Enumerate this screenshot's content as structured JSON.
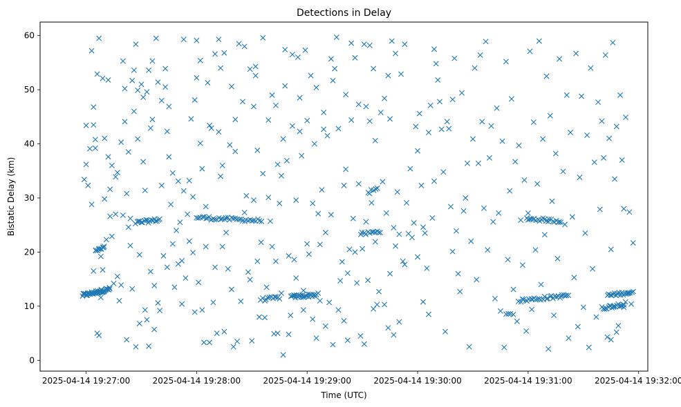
{
  "chart_data": {
    "type": "scatter",
    "title": "Detections in Delay",
    "xlabel": "Time (UTC)",
    "ylabel": "Bistatic Delay (km)",
    "marker": "x",
    "color": "#1f77b4",
    "xlim_seconds": [
      -25,
      305
    ],
    "ylim": [
      -2,
      62.5
    ],
    "x_origin": "2025-04-14 19:27:00",
    "xticks": [
      {
        "t": 0,
        "label": "2025-04-14 19:27:00"
      },
      {
        "t": 60,
        "label": "2025-04-14 19:28:00"
      },
      {
        "t": 120,
        "label": "2025-04-14 19:29:00"
      },
      {
        "t": 180,
        "label": "2025-04-14 19:30:00"
      },
      {
        "t": 240,
        "label": "2025-04-14 19:31:00"
      },
      {
        "t": 300,
        "label": "2025-04-14 19:32:00"
      }
    ],
    "yticks": [
      0,
      10,
      20,
      30,
      40,
      50,
      60
    ],
    "grid": false,
    "clusters": [
      {
        "t0": -2,
        "t1": 13,
        "y0": 12.0,
        "y1": 13.2,
        "n": 42
      },
      {
        "t0": 5,
        "t1": 10,
        "y0": 20.2,
        "y1": 20.8,
        "n": 10
      },
      {
        "t0": 27,
        "t1": 40,
        "y0": 25.4,
        "y1": 26.0,
        "n": 18
      },
      {
        "t0": 60,
        "t1": 95,
        "y0": 26.4,
        "y1": 25.8,
        "n": 36
      },
      {
        "t0": 95,
        "t1": 105,
        "y0": 11.2,
        "y1": 11.6,
        "n": 12
      },
      {
        "t0": 111,
        "t1": 125,
        "y0": 11.7,
        "y1": 12.1,
        "n": 26
      },
      {
        "t0": 149,
        "t1": 160,
        "y0": 23.3,
        "y1": 23.8,
        "n": 12
      },
      {
        "t0": 153,
        "t1": 158,
        "y0": 31.0,
        "y1": 31.6,
        "n": 6
      },
      {
        "t0": 239,
        "t1": 258,
        "y0": 26.2,
        "y1": 25.7,
        "n": 22
      },
      {
        "t0": 235,
        "t1": 262,
        "y0": 11.0,
        "y1": 12.0,
        "n": 30
      },
      {
        "t0": 283,
        "t1": 297,
        "y0": 12.0,
        "y1": 12.6,
        "n": 20
      },
      {
        "t0": 280,
        "t1": 293,
        "y0": 9.6,
        "y1": 10.5,
        "n": 20
      },
      {
        "t0": 228,
        "t1": 232,
        "y0": 8.3,
        "y1": 8.5,
        "n": 4
      }
    ],
    "points": [
      [
        -1,
        33.4
      ],
      [
        0,
        43.4
      ],
      [
        0,
        36.2
      ],
      [
        1,
        32.3
      ],
      [
        2,
        39.1
      ],
      [
        3,
        57.2
      ],
      [
        3,
        28.8
      ],
      [
        4,
        16.5
      ],
      [
        4,
        43.5
      ],
      [
        4,
        46.8
      ],
      [
        5,
        39.2
      ],
      [
        5,
        40.8
      ],
      [
        6,
        52.9
      ],
      [
        6,
        5.0
      ],
      [
        7,
        59.5
      ],
      [
        7,
        4.6
      ],
      [
        8,
        11.6
      ],
      [
        8,
        19.2
      ],
      [
        9,
        16.7
      ],
      [
        9,
        52.1
      ],
      [
        10,
        41.0
      ],
      [
        10,
        29.8
      ],
      [
        11,
        22.3
      ],
      [
        12,
        51.8
      ],
      [
        12,
        37.6
      ],
      [
        13,
        31.6
      ],
      [
        13,
        26.6
      ],
      [
        14,
        22.9
      ],
      [
        14,
        36.0
      ],
      [
        15,
        14.2
      ],
      [
        16,
        33.9
      ],
      [
        16,
        27.0
      ],
      [
        17,
        15.5
      ],
      [
        17,
        34.7
      ],
      [
        18,
        11.0
      ],
      [
        19,
        40.3
      ],
      [
        19,
        13.9
      ],
      [
        20,
        55.3
      ],
      [
        20,
        26.8
      ],
      [
        21,
        50.2
      ],
      [
        21,
        44.1
      ],
      [
        22,
        30.8
      ],
      [
        22,
        3.8
      ],
      [
        23,
        38.5
      ],
      [
        23,
        24.6
      ],
      [
        24,
        21.2
      ],
      [
        24,
        26.2
      ],
      [
        25,
        51.7
      ],
      [
        25,
        13.2
      ],
      [
        26,
        46.0
      ],
      [
        26,
        53.6
      ],
      [
        27,
        58.4
      ],
      [
        27,
        2.5
      ],
      [
        28,
        40.9
      ],
      [
        28,
        49.9
      ],
      [
        29,
        19.5
      ],
      [
        29,
        6.8
      ],
      [
        30,
        51.0
      ],
      [
        31,
        48.6
      ],
      [
        31,
        36.7
      ],
      [
        32,
        9.3
      ],
      [
        32,
        31.4
      ],
      [
        33,
        49.6
      ],
      [
        33,
        7.5
      ],
      [
        34,
        53.6
      ],
      [
        34,
        2.6
      ],
      [
        35,
        16.4
      ],
      [
        35,
        42.9
      ],
      [
        36,
        55.3
      ],
      [
        36,
        44.5
      ],
      [
        37,
        13.8
      ],
      [
        37,
        5.7
      ],
      [
        38,
        59.5
      ],
      [
        39,
        51.4
      ],
      [
        39,
        10.6
      ],
      [
        40,
        9.2
      ],
      [
        41,
        32.3
      ],
      [
        41,
        48.0
      ],
      [
        42,
        19.3
      ],
      [
        43,
        53.9
      ],
      [
        43,
        50.5
      ],
      [
        44,
        42.3
      ],
      [
        44,
        17.2
      ],
      [
        45,
        37.6
      ],
      [
        45,
        46.9
      ],
      [
        46,
        28.8
      ],
      [
        47,
        34.6
      ],
      [
        47,
        21.5
      ],
      [
        48,
        13.5
      ],
      [
        49,
        24.0
      ],
      [
        50,
        17.8
      ],
      [
        50,
        33.1
      ],
      [
        51,
        25.5
      ],
      [
        52,
        10.4
      ],
      [
        52,
        18.4
      ],
      [
        53,
        59.3
      ],
      [
        53,
        31.3
      ],
      [
        54,
        15.2
      ],
      [
        55,
        27.0
      ],
      [
        56,
        33.2
      ],
      [
        56,
        22.0
      ],
      [
        57,
        44.6
      ],
      [
        58,
        30.2
      ],
      [
        58,
        19.9
      ],
      [
        59,
        48.1
      ],
      [
        59,
        8.9
      ],
      [
        60,
        59.1
      ],
      [
        60,
        52.2
      ],
      [
        61,
        14.4
      ],
      [
        62,
        55.4
      ],
      [
        62,
        40.1
      ],
      [
        63,
        35.4
      ],
      [
        63,
        9.3
      ],
      [
        64,
        3.3
      ],
      [
        65,
        21.0
      ],
      [
        65,
        28.4
      ],
      [
        66,
        51.3
      ],
      [
        67,
        3.3
      ],
      [
        67,
        43.4
      ],
      [
        68,
        42.9
      ],
      [
        69,
        10.7
      ],
      [
        70,
        56.6
      ],
      [
        70,
        17.2
      ],
      [
        71,
        5.0
      ],
      [
        72,
        59.3
      ],
      [
        72,
        42.2
      ],
      [
        73,
        34.0
      ],
      [
        73,
        54.0
      ],
      [
        74,
        36.0
      ],
      [
        74,
        21.0
      ],
      [
        75,
        56.8
      ],
      [
        75,
        5.3
      ],
      [
        76,
        23.6
      ],
      [
        77,
        16.9
      ],
      [
        78,
        39.8
      ],
      [
        79,
        50.6
      ],
      [
        79,
        13.1
      ],
      [
        80,
        2.5
      ],
      [
        81,
        44.5
      ],
      [
        81,
        38.6
      ],
      [
        82,
        3.5
      ],
      [
        83,
        58.5
      ],
      [
        84,
        10.9
      ],
      [
        85,
        47.8
      ],
      [
        86,
        27.3
      ],
      [
        86,
        58.0
      ],
      [
        87,
        30.4
      ],
      [
        88,
        16.3
      ],
      [
        89,
        53.8
      ],
      [
        89,
        14.9
      ],
      [
        90,
        3.6
      ],
      [
        91,
        29.6
      ],
      [
        91,
        46.9
      ],
      [
        92,
        54.3
      ],
      [
        92,
        52.6
      ],
      [
        93,
        38.8
      ],
      [
        93,
        18.3
      ],
      [
        94,
        8.0
      ],
      [
        95,
        21.8
      ],
      [
        96,
        59.6
      ],
      [
        96,
        34.5
      ],
      [
        97,
        7.9
      ],
      [
        98,
        13.5
      ],
      [
        99,
        44.4
      ],
      [
        99,
        30.1
      ],
      [
        100,
        25.7
      ],
      [
        101,
        49.0
      ],
      [
        101,
        21.0
      ],
      [
        102,
        4.9
      ],
      [
        103,
        47.1
      ],
      [
        103,
        18.3
      ],
      [
        104,
        36.2
      ],
      [
        104,
        5.0
      ],
      [
        105,
        29.0
      ],
      [
        106,
        12.4
      ],
      [
        106,
        34.1
      ],
      [
        107,
        40.9
      ],
      [
        107,
        1.0
      ],
      [
        108,
        50.7
      ],
      [
        108,
        57.4
      ],
      [
        109,
        36.9
      ],
      [
        110,
        19.3
      ],
      [
        110,
        4.8
      ],
      [
        111,
        8.3
      ],
      [
        112,
        56.5
      ],
      [
        112,
        43.3
      ],
      [
        113,
        18.6
      ],
      [
        114,
        15.2
      ],
      [
        114,
        29.6
      ],
      [
        115,
        56.0
      ],
      [
        116,
        48.5
      ],
      [
        116,
        42.3
      ],
      [
        117,
        37.8
      ],
      [
        118,
        9.3
      ],
      [
        118,
        12.9
      ],
      [
        119,
        57.3
      ],
      [
        120,
        21.5
      ],
      [
        120,
        44.3
      ],
      [
        121,
        19.6
      ],
      [
        122,
        52.6
      ],
      [
        123,
        7.6
      ],
      [
        123,
        29.0
      ],
      [
        124,
        40.0
      ],
      [
        125,
        50.4
      ],
      [
        125,
        4.1
      ],
      [
        126,
        27.1
      ],
      [
        126,
        12.4
      ],
      [
        127,
        21.4
      ],
      [
        127,
        11.0
      ],
      [
        128,
        31.5
      ],
      [
        129,
        45.8
      ],
      [
        129,
        42.7
      ],
      [
        130,
        6.3
      ],
      [
        130,
        23.6
      ],
      [
        131,
        41.5
      ],
      [
        132,
        10.7
      ],
      [
        133,
        55.7
      ],
      [
        133,
        26.9
      ],
      [
        134,
        51.7
      ],
      [
        134,
        2.9
      ],
      [
        135,
        53.9
      ],
      [
        136,
        59.7
      ],
      [
        137,
        9.3
      ],
      [
        137,
        42.8
      ],
      [
        138,
        14.7
      ],
      [
        139,
        18.2
      ],
      [
        140,
        32.3
      ],
      [
        140,
        7.3
      ],
      [
        141,
        35.3
      ],
      [
        141,
        49.1
      ],
      [
        142,
        16.1
      ],
      [
        142,
        3.7
      ],
      [
        143,
        20.5
      ],
      [
        144,
        44.4
      ],
      [
        144,
        58.6
      ],
      [
        145,
        26.2
      ],
      [
        146,
        55.9
      ],
      [
        146,
        20.0
      ],
      [
        147,
        14.3
      ],
      [
        148,
        47.3
      ],
      [
        148,
        32.6
      ],
      [
        149,
        4.5
      ],
      [
        150,
        20.6
      ],
      [
        151,
        58.4
      ],
      [
        151,
        3.0
      ],
      [
        152,
        25.6
      ],
      [
        152,
        46.9
      ],
      [
        153,
        14.8
      ],
      [
        154,
        58.2
      ],
      [
        154,
        44.2
      ],
      [
        155,
        29.1
      ],
      [
        156,
        9.5
      ],
      [
        156,
        53.9
      ],
      [
        157,
        21.9
      ],
      [
        157,
        40.6
      ],
      [
        158,
        10.3
      ],
      [
        159,
        12.7
      ],
      [
        160,
        45.8
      ],
      [
        161,
        33.0
      ],
      [
        162,
        48.4
      ],
      [
        162,
        10.3
      ],
      [
        163,
        27.2
      ],
      [
        164,
        6.0
      ],
      [
        164,
        52.6
      ],
      [
        165,
        44.6
      ],
      [
        165,
        16.0
      ],
      [
        166,
        59.0
      ],
      [
        167,
        24.5
      ],
      [
        167,
        4.7
      ],
      [
        168,
        56.7
      ],
      [
        168,
        21.1
      ],
      [
        169,
        31.1
      ],
      [
        170,
        23.3
      ],
      [
        170,
        7.1
      ],
      [
        171,
        52.9
      ],
      [
        172,
        18.3
      ],
      [
        173,
        58.4
      ],
      [
        173,
        17.7
      ],
      [
        174,
        29.1
      ],
      [
        175,
        23.4
      ],
      [
        176,
        35.4
      ],
      [
        177,
        22.7
      ],
      [
        178,
        25.4
      ],
      [
        179,
        43.2
      ],
      [
        180,
        19.1
      ],
      [
        180,
        38.7
      ],
      [
        181,
        45.6
      ],
      [
        182,
        32.3
      ],
      [
        183,
        24.6
      ],
      [
        183,
        10.8
      ],
      [
        184,
        23.5
      ],
      [
        185,
        17.0
      ],
      [
        186,
        42.1
      ],
      [
        186,
        8.5
      ],
      [
        187,
        47.1
      ],
      [
        188,
        26.3
      ],
      [
        189,
        33.1
      ],
      [
        189,
        57.5
      ],
      [
        190,
        54.8
      ],
      [
        191,
        51.8
      ],
      [
        192,
        47.8
      ],
      [
        193,
        42.7
      ],
      [
        194,
        34.8
      ],
      [
        195,
        5.3
      ],
      [
        196,
        44.1
      ],
      [
        197,
        42.8
      ],
      [
        198,
        28.4
      ],
      [
        199,
        48.2
      ],
      [
        199,
        20.1
      ],
      [
        200,
        55.8
      ],
      [
        201,
        23.9
      ],
      [
        202,
        16.0
      ],
      [
        203,
        12.7
      ],
      [
        204,
        49.4
      ],
      [
        205,
        27.6
      ],
      [
        206,
        30.0
      ],
      [
        207,
        36.4
      ],
      [
        208,
        2.5
      ],
      [
        209,
        22.0
      ],
      [
        210,
        40.9
      ],
      [
        211,
        54.0
      ],
      [
        212,
        14.9
      ],
      [
        213,
        36.4
      ],
      [
        214,
        56.4
      ],
      [
        215,
        44.1
      ],
      [
        216,
        28.1
      ],
      [
        217,
        58.9
      ],
      [
        218,
        20.4
      ],
      [
        219,
        37.4
      ],
      [
        220,
        43.3
      ],
      [
        221,
        25.6
      ],
      [
        222,
        11.4
      ],
      [
        223,
        46.6
      ],
      [
        224,
        27.2
      ],
      [
        225,
        9.1
      ],
      [
        226,
        40.5
      ],
      [
        227,
        2.4
      ],
      [
        228,
        55.2
      ],
      [
        229,
        18.6
      ],
      [
        230,
        31.3
      ],
      [
        231,
        48.3
      ],
      [
        232,
        13.1
      ],
      [
        233,
        36.7
      ],
      [
        234,
        7.2
      ],
      [
        235,
        39.7
      ],
      [
        236,
        25.9
      ],
      [
        237,
        17.6
      ],
      [
        238,
        33.3
      ],
      [
        239,
        5.4
      ],
      [
        240,
        27.2
      ],
      [
        241,
        57.1
      ],
      [
        242,
        9.4
      ],
      [
        243,
        44.0
      ],
      [
        244,
        20.4
      ],
      [
        245,
        32.6
      ],
      [
        246,
        59.0
      ],
      [
        247,
        14.0
      ],
      [
        248,
        40.9
      ],
      [
        249,
        23.2
      ],
      [
        250,
        52.5
      ],
      [
        251,
        2.1
      ],
      [
        252,
        45.2
      ],
      [
        253,
        29.4
      ],
      [
        254,
        8.3
      ],
      [
        255,
        38.2
      ],
      [
        256,
        18.8
      ],
      [
        257,
        55.7
      ],
      [
        258,
        11.8
      ],
      [
        259,
        34.9
      ],
      [
        260,
        25.1
      ],
      [
        261,
        49.0
      ],
      [
        262,
        4.1
      ],
      [
        263,
        42.1
      ],
      [
        264,
        26.5
      ],
      [
        265,
        15.3
      ],
      [
        266,
        56.7
      ],
      [
        267,
        6.2
      ],
      [
        268,
        33.8
      ],
      [
        269,
        48.8
      ],
      [
        270,
        9.8
      ],
      [
        271,
        23.5
      ],
      [
        272,
        41.6
      ],
      [
        273,
        2.4
      ],
      [
        274,
        54.0
      ],
      [
        275,
        16.9
      ],
      [
        276,
        36.6
      ],
      [
        277,
        8.0
      ],
      [
        278,
        47.7
      ],
      [
        279,
        27.9
      ],
      [
        280,
        44.2
      ],
      [
        281,
        37.4
      ],
      [
        282,
        56.4
      ],
      [
        283,
        4.3
      ],
      [
        284,
        41.0
      ],
      [
        285,
        20.5
      ],
      [
        286,
        58.7
      ],
      [
        287,
        33.5
      ],
      [
        288,
        43.2
      ],
      [
        289,
        6.4
      ],
      [
        290,
        49.0
      ],
      [
        291,
        37.0
      ],
      [
        292,
        28.0
      ],
      [
        293,
        44.9
      ],
      [
        294,
        12.4
      ],
      [
        295,
        27.4
      ],
      [
        296,
        10.4
      ],
      [
        297,
        21.7
      ],
      [
        285,
        3.8
      ],
      [
        288,
        5.2
      ],
      [
        292,
        9.8
      ]
    ]
  }
}
